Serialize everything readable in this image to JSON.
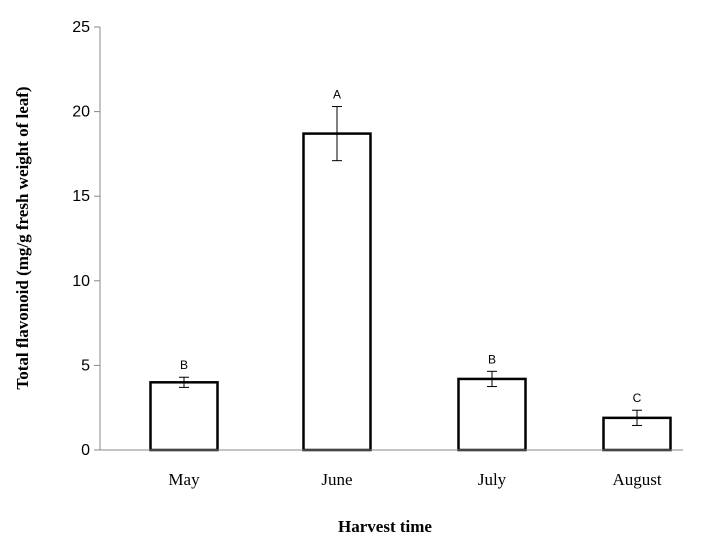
{
  "chart_data": {
    "type": "bar",
    "categories": [
      "May",
      "June",
      "July",
      "August"
    ],
    "values": [
      4.0,
      18.7,
      4.2,
      1.9
    ],
    "error": [
      0.3,
      1.6,
      0.45,
      0.45
    ],
    "significance_letters": [
      "B",
      "A",
      "B",
      "C"
    ],
    "title": "",
    "xlabel": "Harvest time",
    "ylabel": "Total flavonoid (mg/g fresh  weight of leaf)",
    "ylim": [
      0,
      25
    ],
    "yticks": [
      0,
      5,
      10,
      15,
      20,
      25
    ],
    "grid": false,
    "legend": "none",
    "bar_fill": "#ffffff",
    "bar_stroke": "#000000"
  }
}
